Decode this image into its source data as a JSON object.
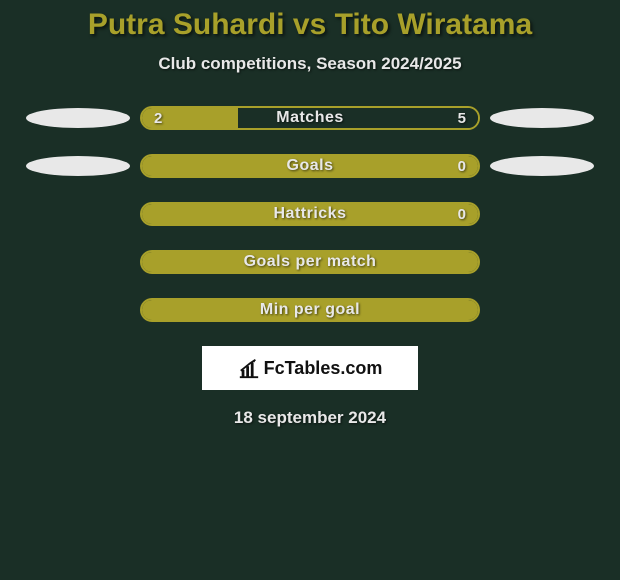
{
  "colors": {
    "background": "#1a2f26",
    "title": "#a8a02a",
    "text_light": "#e8e8e8",
    "bar_track_border": "#a8a02a",
    "bar_fill_olive": "#a8a02a",
    "bar_fill_dark": "#1a2f26",
    "swoosh": "#e8e8e8",
    "logo_bg": "#ffffff",
    "logo_text": "#111111"
  },
  "typography": {
    "title_size": 30,
    "subtitle_size": 17,
    "bar_label_size": 16,
    "bar_value_size": 15,
    "date_size": 17
  },
  "header": {
    "title": "Putra Suhardi vs Tito Wiratama",
    "subtitle": "Club competitions, Season 2024/2025"
  },
  "rows": [
    {
      "label": "Matches",
      "left_val": "2",
      "right_val": "5",
      "left_pct": 28.6,
      "right_pct": 71.4,
      "show_swoosh": true,
      "left_color": "#a8a02a",
      "right_color": "#1a2f26"
    },
    {
      "label": "Goals",
      "left_val": "",
      "right_val": "0",
      "left_pct": 100,
      "right_pct": 0,
      "show_swoosh": true,
      "left_color": "#a8a02a",
      "right_color": "#1a2f26"
    },
    {
      "label": "Hattricks",
      "left_val": "",
      "right_val": "0",
      "left_pct": 100,
      "right_pct": 0,
      "show_swoosh": false,
      "left_color": "#a8a02a",
      "right_color": "#1a2f26"
    },
    {
      "label": "Goals per match",
      "left_val": "",
      "right_val": "",
      "left_pct": 100,
      "right_pct": 0,
      "show_swoosh": false,
      "left_color": "#a8a02a",
      "right_color": "#1a2f26"
    },
    {
      "label": "Min per goal",
      "left_val": "",
      "right_val": "",
      "left_pct": 100,
      "right_pct": 0,
      "show_swoosh": false,
      "left_color": "#a8a02a",
      "right_color": "#1a2f26"
    }
  ],
  "logo": {
    "text": "FcTables.com"
  },
  "footer": {
    "date": "18 september 2024"
  }
}
